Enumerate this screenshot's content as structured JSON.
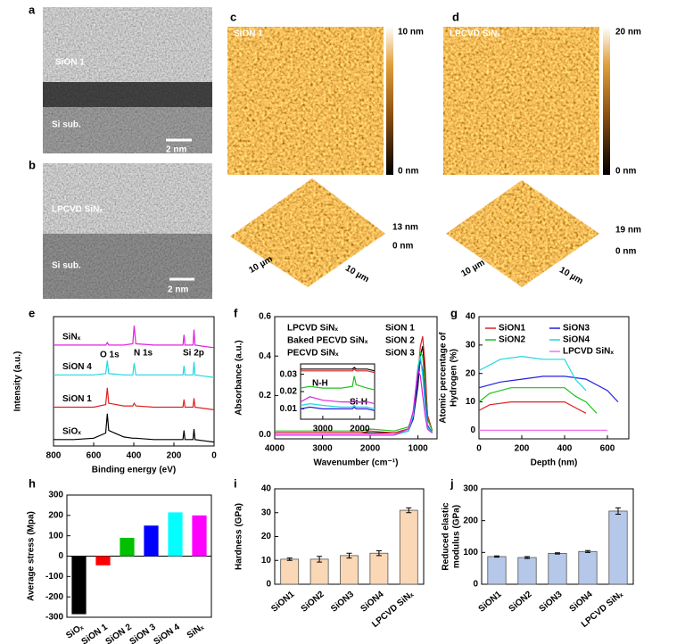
{
  "panel_labels": [
    "a",
    "b",
    "c",
    "d",
    "e",
    "f",
    "g",
    "h",
    "i",
    "j"
  ],
  "images": [
    {
      "labels": [
        "SiON 1",
        "Si sub.",
        "2 nm"
      ]
    },
    {
      "labels": [
        "LPCVD SiNₓ",
        "Si sub.",
        "2 nm"
      ]
    },
    {
      "labels": [
        "SiON 1",
        "10 nm",
        "0 nm",
        "13 nm",
        "0 nm",
        "10 µm",
        "10 µm"
      ]
    },
    {
      "labels": [
        "LPCVD SiNₓ",
        "20 nm",
        "0 nm",
        "19 nm",
        "0 nm",
        "10 µm",
        "10 µm"
      ]
    }
  ],
  "chart_data": [
    {
      "type": "line",
      "xlabel": "Binding energy (eV)",
      "ylabel": "Intensity (a.u.)",
      "x": [
        800,
        700,
        600,
        540,
        532,
        525,
        450,
        405,
        398,
        390,
        300,
        200,
        155,
        150,
        145,
        105,
        100,
        95,
        50,
        0
      ],
      "xlim": [
        800,
        0
      ],
      "xticks": [
        800,
        600,
        400,
        200,
        0
      ],
      "ylim": [
        0,
        1
      ],
      "annotations": [
        "O 1s",
        "N 1s",
        "Si 2p"
      ],
      "series": [
        {
          "name": "SiNₓ",
          "color": "#e020e0",
          "values": [
            0.78,
            0.78,
            0.78,
            0.78,
            0.8,
            0.78,
            0.78,
            0.79,
            0.93,
            0.79,
            0.78,
            0.78,
            0.78,
            0.86,
            0.78,
            0.78,
            0.9,
            0.78,
            0.77,
            0.76
          ]
        },
        {
          "name": "SiON 4",
          "color": "#20d8e0",
          "values": [
            0.55,
            0.55,
            0.55,
            0.56,
            0.66,
            0.56,
            0.55,
            0.55,
            0.64,
            0.55,
            0.55,
            0.55,
            0.55,
            0.62,
            0.55,
            0.55,
            0.65,
            0.55,
            0.54,
            0.53
          ]
        },
        {
          "name": "SiON 1",
          "color": "#e02020",
          "values": [
            0.3,
            0.3,
            0.3,
            0.32,
            0.45,
            0.33,
            0.31,
            0.31,
            0.33,
            0.31,
            0.3,
            0.3,
            0.3,
            0.36,
            0.3,
            0.3,
            0.37,
            0.3,
            0.29,
            0.28
          ]
        },
        {
          "name": "SiOₓ",
          "color": "#000000",
          "values": [
            0.05,
            0.05,
            0.06,
            0.1,
            0.25,
            0.12,
            0.07,
            0.06,
            0.06,
            0.06,
            0.05,
            0.05,
            0.05,
            0.12,
            0.05,
            0.05,
            0.13,
            0.05,
            0.04,
            0.03
          ]
        }
      ]
    },
    {
      "type": "line",
      "xlabel": "Wavenumber (cm⁻¹)",
      "ylabel": "Absorbance (a.u.)",
      "x": [
        4000,
        3000,
        2200,
        2000,
        1500,
        1200,
        1100,
        1000,
        950,
        900,
        850,
        800,
        700
      ],
      "xlim": [
        4000,
        600
      ],
      "xticks": [
        4000,
        3000,
        2000,
        1000
      ],
      "ylim": [
        -0.02,
        0.6
      ],
      "yticks": [
        {
          "value": 0,
          "label": "0.0"
        },
        0.2,
        0.4,
        0.6
      ],
      "series": [
        {
          "name": "LPCVD SiNₓ",
          "color": "#000000",
          "values": [
            0.01,
            0.01,
            0.01,
            0.01,
            0.01,
            0.03,
            0.08,
            0.25,
            0.4,
            0.45,
            0.3,
            0.1,
            0.02
          ]
        },
        {
          "name": "Baked PECVD SiNₓ",
          "color": "#e02020",
          "values": [
            0.01,
            0.01,
            0.01,
            0.02,
            0.01,
            0.03,
            0.1,
            0.3,
            0.45,
            0.5,
            0.35,
            0.1,
            0.02
          ]
        },
        {
          "name": "PECVD SiNₓ",
          "color": "#20c020",
          "values": [
            0.02,
            0.02,
            0.02,
            0.03,
            0.02,
            0.04,
            0.1,
            0.3,
            0.42,
            0.4,
            0.25,
            0.08,
            0.02
          ]
        },
        {
          "name": "SiON 1",
          "color": "#2020e0",
          "values": [
            0.0,
            0.0,
            0.0,
            0.0,
            0.0,
            0.02,
            0.08,
            0.3,
            0.38,
            0.33,
            0.2,
            0.05,
            0.01
          ]
        },
        {
          "name": "SiON 2",
          "color": "#20d8e0",
          "values": [
            0.0,
            0.0,
            0.0,
            0.0,
            0.0,
            0.02,
            0.1,
            0.35,
            0.4,
            0.3,
            0.15,
            0.04,
            0.01
          ]
        },
        {
          "name": "SiON 3",
          "color": "#e020e0",
          "values": [
            0.0,
            0.0,
            0.0,
            0.0,
            0.0,
            0.03,
            0.12,
            0.33,
            0.3,
            0.2,
            0.1,
            0.03,
            0.01
          ]
        }
      ]
    },
    {
      "type": "line",
      "x": [
        3600,
        3350,
        3000,
        2500,
        2200,
        2150,
        2100,
        1800,
        1600
      ],
      "xlim": [
        3600,
        1600
      ],
      "xticks": [
        3000,
        2000
      ],
      "ylim": [
        0.004,
        0.036
      ],
      "yticks": [
        0.01,
        0.02,
        0.03
      ],
      "annotations": [
        "N-H",
        "Si-H"
      ],
      "series": [
        {
          "color": "#000000",
          "values": [
            0.033,
            0.033,
            0.033,
            0.033,
            0.033,
            0.034,
            0.033,
            0.033,
            0.032
          ]
        },
        {
          "color": "#e02020",
          "values": [
            0.032,
            0.032,
            0.032,
            0.032,
            0.032,
            0.033,
            0.032,
            0.032,
            0.031
          ]
        },
        {
          "color": "#20c020",
          "values": [
            0.022,
            0.023,
            0.022,
            0.022,
            0.023,
            0.029,
            0.024,
            0.022,
            0.021
          ]
        },
        {
          "color": "#2020e0",
          "values": [
            0.01,
            0.011,
            0.01,
            0.01,
            0.01,
            0.011,
            0.01,
            0.01,
            0.009
          ]
        },
        {
          "color": "#20d8e0",
          "values": [
            0.012,
            0.013,
            0.012,
            0.011,
            0.011,
            0.012,
            0.011,
            0.011,
            0.01
          ]
        },
        {
          "color": "#e020e0",
          "values": [
            0.014,
            0.017,
            0.015,
            0.014,
            0.014,
            0.015,
            0.014,
            0.014,
            0.013
          ]
        }
      ]
    },
    {
      "type": "line",
      "xlabel": "Depth (nm)",
      "ylabel": [
        "Atomic percentage of",
        "Hydrogen (%)"
      ],
      "xlim": [
        0,
        700
      ],
      "xticks": [
        0,
        200,
        400,
        600
      ],
      "ylim": [
        -3,
        40
      ],
      "yticks": [
        0,
        10,
        20,
        30,
        40
      ],
      "series": [
        {
          "name": "SiON1",
          "color": "#e02020",
          "x": [
            0,
            50,
            150,
            300,
            400,
            450,
            500
          ],
          "values": [
            7,
            9,
            10,
            10,
            10,
            8,
            6
          ]
        },
        {
          "name": "SiON2",
          "color": "#20c020",
          "x": [
            0,
            50,
            150,
            300,
            400,
            450,
            500,
            550
          ],
          "values": [
            10,
            13,
            15,
            15,
            15,
            12,
            10,
            6
          ]
        },
        {
          "name": "SiON3",
          "color": "#2020e0",
          "x": [
            0,
            100,
            200,
            300,
            400,
            500,
            600,
            650
          ],
          "values": [
            15,
            17,
            18,
            19,
            19,
            18,
            14,
            10
          ]
        },
        {
          "name": "SiON4",
          "color": "#20d8e0",
          "x": [
            0,
            100,
            200,
            300,
            400,
            450,
            500
          ],
          "values": [
            21,
            25,
            26,
            25,
            25,
            18,
            14
          ]
        },
        {
          "name": "LPCVD SiNₓ",
          "color": "#f070f0",
          "x": [
            0,
            600
          ],
          "values": [
            0,
            0
          ]
        }
      ]
    },
    {
      "type": "bar",
      "ylabel": "Average stress (Mpa)",
      "categories": [
        "SiOₓ",
        "SiON 1",
        "SiON 2",
        "SiON 3",
        "SiON 4",
        "SiNₓ"
      ],
      "values": [
        -285,
        -45,
        90,
        150,
        215,
        200
      ],
      "colors": [
        "#000000",
        "#ff0000",
        "#00c000",
        "#0000ff",
        "#00ffff",
        "#ff00ff"
      ],
      "ylim": [
        -300,
        300
      ],
      "yticks": [
        -300,
        -200,
        -100,
        0,
        100,
        200,
        300
      ]
    },
    {
      "type": "bar",
      "ylabel": "Hardness (GPa)",
      "categories": [
        "SiON1",
        "SiON2",
        "SiON3",
        "SiON4",
        "LPCVD SiNₓ"
      ],
      "values": [
        10.5,
        10.5,
        12,
        13,
        31
      ],
      "errors": [
        0.5,
        1.2,
        1,
        1,
        1
      ],
      "color": "#fad7b5",
      "ylim": [
        0,
        40
      ],
      "yticks": [
        0,
        10,
        20,
        30,
        40
      ]
    },
    {
      "type": "bar",
      "ylabel": [
        "Reduced elastic",
        "modulus (GPa)"
      ],
      "categories": [
        "SiON1",
        "SiON2",
        "SiON3",
        "SiON4",
        "LPCVD SiNₓ"
      ],
      "values": [
        87,
        84,
        97,
        103,
        230
      ],
      "errors": [
        2,
        3,
        2,
        3,
        10
      ],
      "color": "#b6c8ea",
      "ylim": [
        0,
        300
      ],
      "yticks": [
        0,
        100,
        200,
        300
      ]
    }
  ]
}
